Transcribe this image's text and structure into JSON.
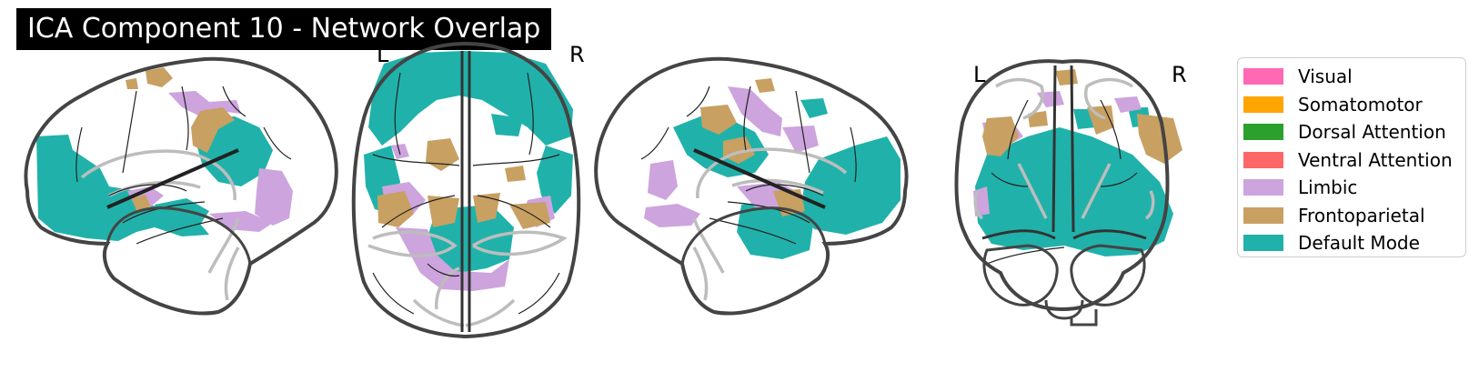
{
  "title": "ICA Component 10 - Network Overlap",
  "orientation": {
    "axial": {
      "left": "L",
      "right": "R"
    },
    "coronal": {
      "left": "L",
      "right": "R"
    }
  },
  "legend": [
    {
      "label": "Visual",
      "color": "#ff69b4"
    },
    {
      "label": "Somatomotor",
      "color": "#ffa500"
    },
    {
      "label": "Dorsal Attention",
      "color": "#2ca02c"
    },
    {
      "label": "Ventral Attention",
      "color": "#ff6666"
    },
    {
      "label": "Limbic",
      "color": "#cda4de"
    },
    {
      "label": "Frontoparietal",
      "color": "#c8a062"
    },
    {
      "label": "Default Mode",
      "color": "#20b2aa"
    }
  ],
  "colors": {
    "default_mode": "#20b2aa",
    "limbic": "#cda4de",
    "frontoparietal": "#c8a062",
    "outline": "#444444",
    "sulci": "#bdbdbd"
  }
}
